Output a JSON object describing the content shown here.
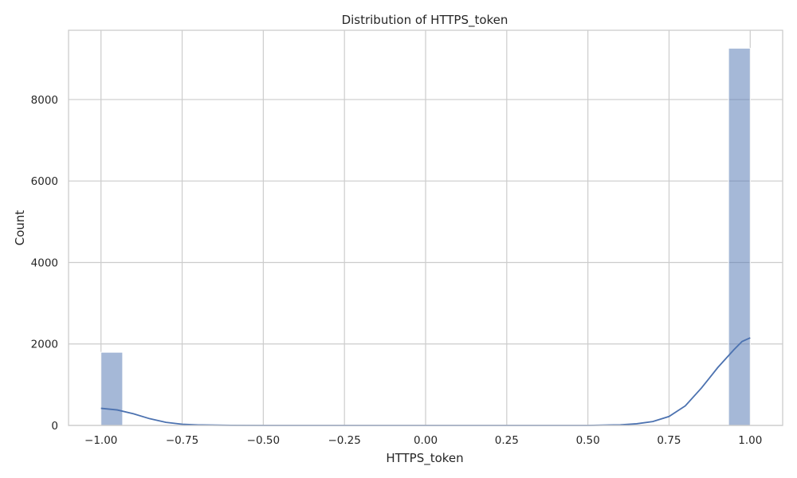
{
  "chart_data": {
    "type": "bar",
    "title": "Distribution of HTTPS_token",
    "xlabel": "HTTPS_token",
    "ylabel": "Count",
    "xlim": [
      -1.1,
      1.1
    ],
    "ylim": [
      0,
      9700
    ],
    "grid": true,
    "x_ticks": [
      -1.0,
      -0.75,
      -0.5,
      -0.25,
      0.0,
      0.25,
      0.5,
      0.75,
      1.0
    ],
    "x_tick_labels": [
      "−1.00",
      "−0.75",
      "−0.50",
      "−0.25",
      "0.00",
      "0.25",
      "0.50",
      "0.75",
      "1.00"
    ],
    "y_ticks": [
      0,
      2000,
      4000,
      6000,
      8000
    ],
    "y_tick_labels": [
      "0",
      "2000",
      "4000",
      "6000",
      "8000"
    ],
    "bin_width": 0.0667,
    "bars": [
      {
        "x_start": -1.0,
        "x_end": -0.9333,
        "count": 1796
      },
      {
        "x_start": 0.9333,
        "x_end": 1.0,
        "count": 9259
      }
    ],
    "kde": {
      "x": [
        -1.0,
        -0.95,
        -0.9,
        -0.85,
        -0.8,
        -0.75,
        -0.7,
        -0.6,
        -0.5,
        -0.25,
        0.0,
        0.25,
        0.5,
        0.6,
        0.65,
        0.7,
        0.75,
        0.8,
        0.85,
        0.9,
        0.95,
        0.975,
        1.0
      ],
      "y": [
        420,
        380,
        285,
        165,
        75,
        30,
        12,
        3,
        0,
        0,
        0,
        0,
        0,
        15,
        40,
        95,
        220,
        480,
        920,
        1420,
        1860,
        2060,
        2150
      ]
    },
    "colors": {
      "bar": "#4c72b0",
      "kde": "#4c72b0",
      "grid": "#cccccc"
    }
  }
}
